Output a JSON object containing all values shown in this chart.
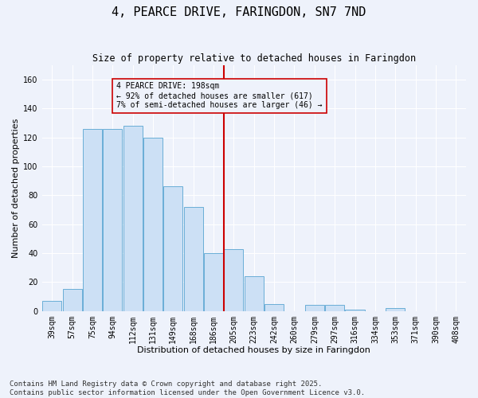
{
  "title": "4, PEARCE DRIVE, FARINGDON, SN7 7ND",
  "subtitle": "Size of property relative to detached houses in Faringdon",
  "xlabel": "Distribution of detached houses by size in Faringdon",
  "ylabel": "Number of detached properties",
  "categories": [
    "39sqm",
    "57sqm",
    "75sqm",
    "94sqm",
    "112sqm",
    "131sqm",
    "149sqm",
    "168sqm",
    "186sqm",
    "205sqm",
    "223sqm",
    "242sqm",
    "260sqm",
    "279sqm",
    "297sqm",
    "316sqm",
    "334sqm",
    "353sqm",
    "371sqm",
    "390sqm",
    "408sqm"
  ],
  "values": [
    7,
    15,
    126,
    126,
    128,
    120,
    86,
    72,
    40,
    43,
    24,
    5,
    0,
    4,
    4,
    1,
    0,
    2,
    0,
    0,
    0
  ],
  "bar_color": "#cce0f5",
  "bar_edge_color": "#6aaed6",
  "vline_color": "#cc0000",
  "annotation_text": "4 PEARCE DRIVE: 198sqm\n← 92% of detached houses are smaller (617)\n7% of semi-detached houses are larger (46) →",
  "annotation_box_color": "#cc0000",
  "ylim": [
    0,
    170
  ],
  "yticks": [
    0,
    20,
    40,
    60,
    80,
    100,
    120,
    140,
    160
  ],
  "footer": "Contains HM Land Registry data © Crown copyright and database right 2025.\nContains public sector information licensed under the Open Government Licence v3.0.",
  "background_color": "#eef2fb",
  "grid_color": "#ffffff",
  "title_fontsize": 11,
  "subtitle_fontsize": 8.5,
  "axis_label_fontsize": 8,
  "tick_fontsize": 7,
  "footer_fontsize": 6.5
}
